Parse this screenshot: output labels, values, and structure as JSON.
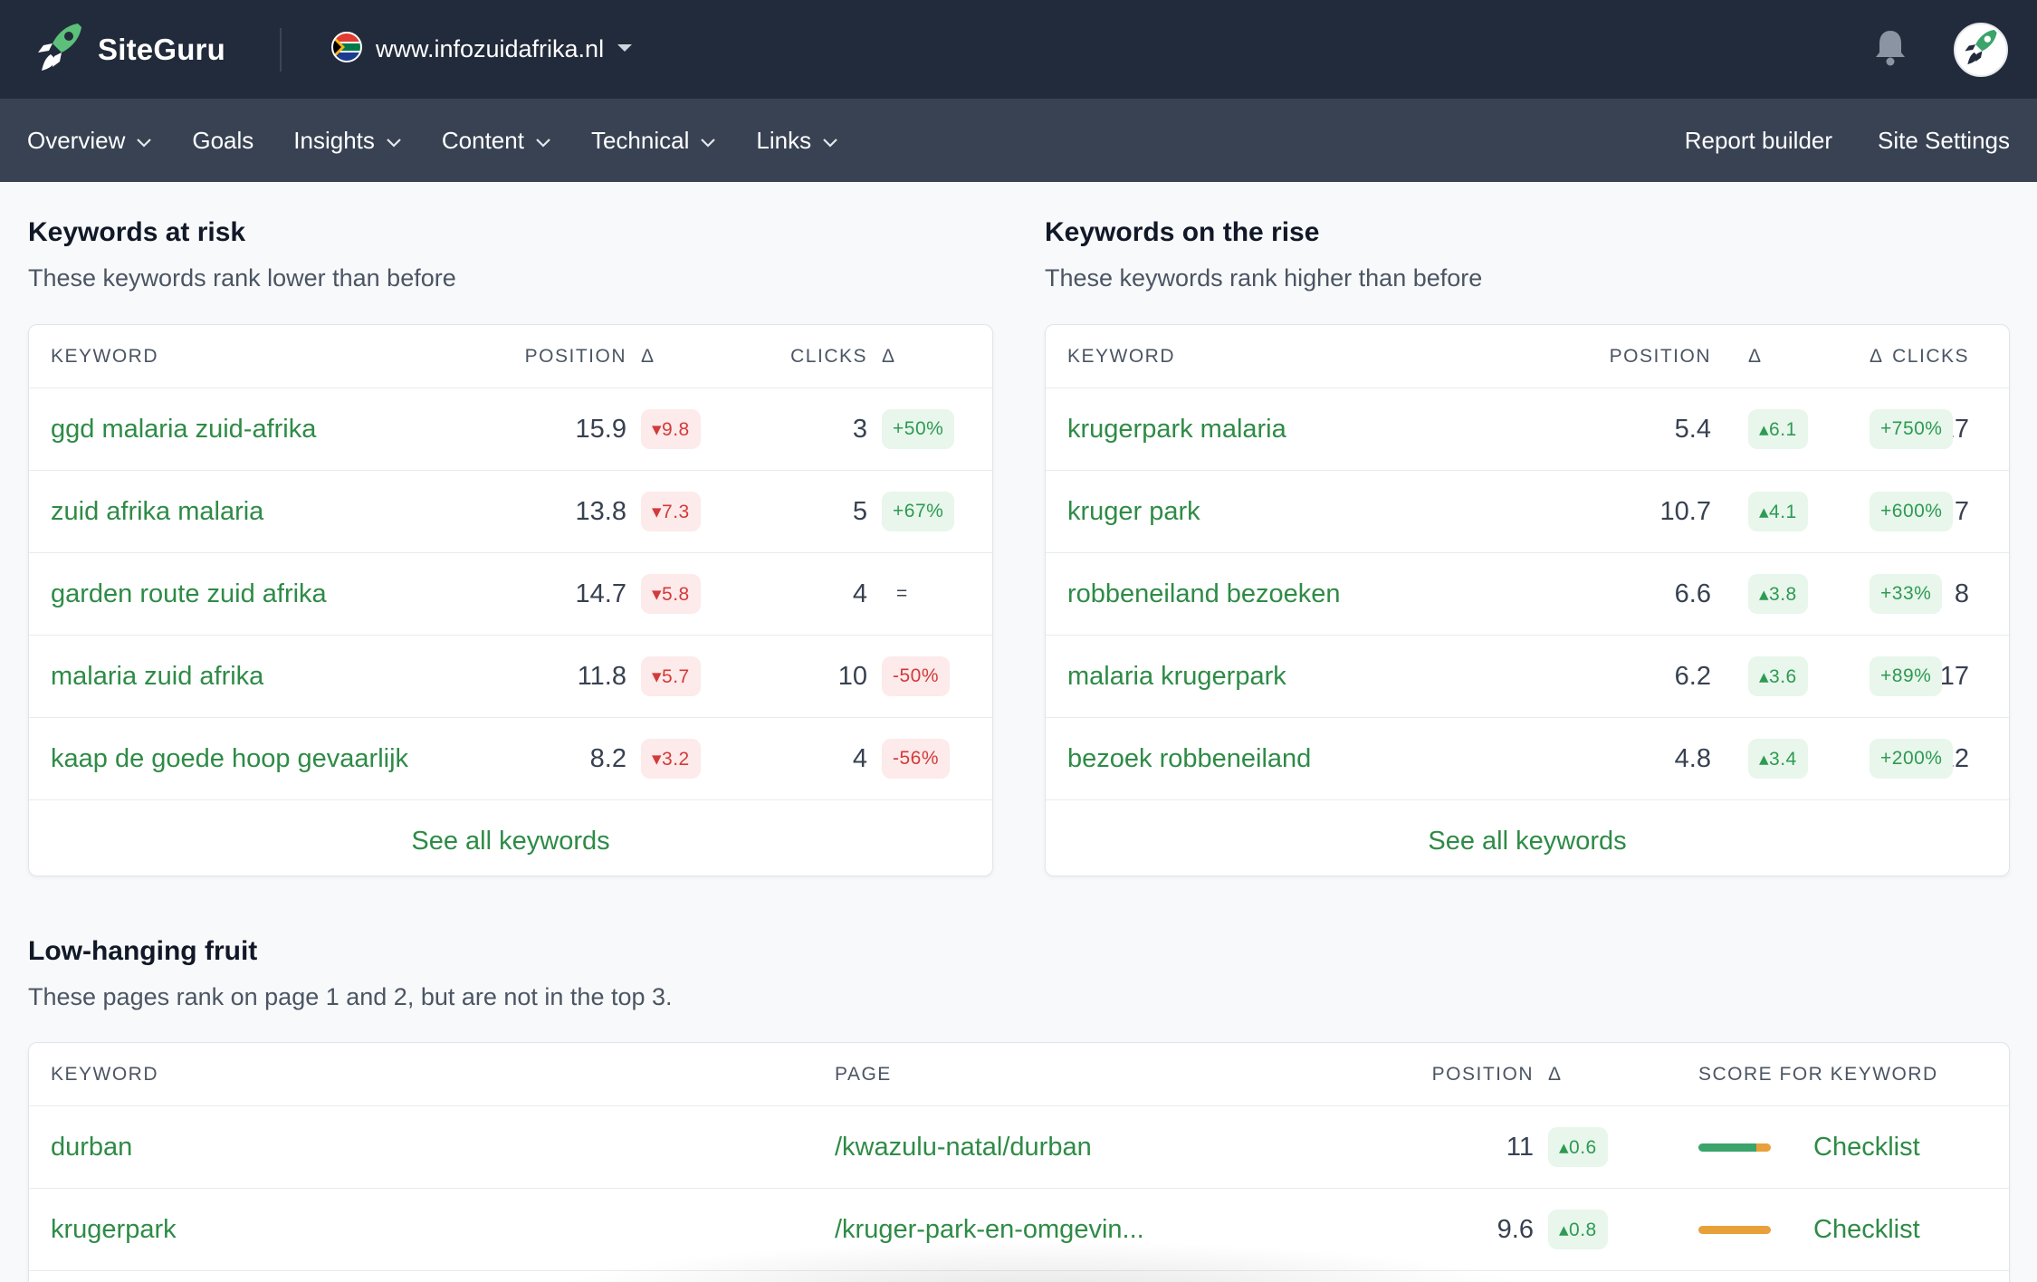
{
  "app": {
    "name": "SiteGuru",
    "site_url": "www.infozuidafrika.nl"
  },
  "nav": {
    "items": [
      {
        "label": "Overview",
        "dropdown": true
      },
      {
        "label": "Goals",
        "dropdown": false
      },
      {
        "label": "Insights",
        "dropdown": true
      },
      {
        "label": "Content",
        "dropdown": true
      },
      {
        "label": "Technical",
        "dropdown": true
      },
      {
        "label": "Links",
        "dropdown": true
      }
    ],
    "right": [
      "Report builder",
      "Site Settings"
    ]
  },
  "risk": {
    "title": "Keywords at risk",
    "subtitle": "These keywords rank lower than before",
    "columns": [
      "KEYWORD",
      "POSITION",
      "Δ",
      "CLICKS",
      "Δ"
    ],
    "rows": [
      {
        "keyword": "ggd malaria zuid-afrika",
        "position": "15.9",
        "pos_delta": "▾9.8",
        "clicks": "3",
        "clicks_delta": "+50%",
        "clicks_tone": "green"
      },
      {
        "keyword": "zuid afrika malaria",
        "position": "13.8",
        "pos_delta": "▾7.3",
        "clicks": "5",
        "clicks_delta": "+67%",
        "clicks_tone": "green"
      },
      {
        "keyword": "garden route zuid afrika",
        "position": "14.7",
        "pos_delta": "▾5.8",
        "clicks": "4",
        "clicks_delta": "=",
        "clicks_tone": "neutral"
      },
      {
        "keyword": "malaria zuid afrika",
        "position": "11.8",
        "pos_delta": "▾5.7",
        "clicks": "10",
        "clicks_delta": "-50%",
        "clicks_tone": "red"
      },
      {
        "keyword": "kaap de goede hoop gevaarlijk",
        "position": "8.2",
        "pos_delta": "▾3.2",
        "clicks": "4",
        "clicks_delta": "-56%",
        "clicks_tone": "red"
      }
    ],
    "see_all": "See all keywords"
  },
  "rise": {
    "title": "Keywords on the rise",
    "subtitle": "These keywords rank higher than before",
    "columns": [
      "KEYWORD",
      "POSITION",
      "Δ",
      "CLICKS",
      "Δ"
    ],
    "rows": [
      {
        "keyword": "krugerpark malaria",
        "position": "5.4",
        "pos_delta": "▴6.1",
        "clicks": "17",
        "clicks_delta": "+750%",
        "clicks_tone": "green"
      },
      {
        "keyword": "kruger park",
        "position": "10.7",
        "pos_delta": "▴4.1",
        "clicks": "7",
        "clicks_delta": "+600%",
        "clicks_tone": "green"
      },
      {
        "keyword": "robbeneiland bezoeken",
        "position": "6.6",
        "pos_delta": "▴3.8",
        "clicks": "8",
        "clicks_delta": "+33%",
        "clicks_tone": "green"
      },
      {
        "keyword": "malaria krugerpark",
        "position": "6.2",
        "pos_delta": "▴3.6",
        "clicks": "17",
        "clicks_delta": "+89%",
        "clicks_tone": "green"
      },
      {
        "keyword": "bezoek robbeneiland",
        "position": "4.8",
        "pos_delta": "▴3.4",
        "clicks": "12",
        "clicks_delta": "+200%",
        "clicks_tone": "green"
      }
    ],
    "see_all": "See all keywords"
  },
  "fruit": {
    "title": "Low-hanging fruit",
    "subtitle": "These pages rank on page 1 and 2, but are not in the top 3.",
    "columns": [
      "KEYWORD",
      "PAGE",
      "POSITION",
      "Δ",
      "SCORE FOR KEYWORD"
    ],
    "rows": [
      {
        "keyword": "durban",
        "page": "/kwazulu-natal/durban",
        "position": "11",
        "pos_delta": "▴0.6",
        "score": 0.8,
        "score_color": "#3aa46b",
        "rest_color": "#e8a03a",
        "action": "Checklist"
      },
      {
        "keyword": "krugerpark",
        "page": "/kruger-park-en-omgevin...",
        "position": "9.6",
        "pos_delta": "▴0.8",
        "score": 1.0,
        "score_color": "#e8a03a",
        "rest_color": "#e8a03a",
        "action": "Checklist"
      }
    ]
  },
  "colors": {
    "topbar": "#222b3b",
    "navbar": "#384253",
    "link_green": "#2e8b46",
    "up_green": "#2e9a52",
    "down_red": "#d33a3a"
  }
}
